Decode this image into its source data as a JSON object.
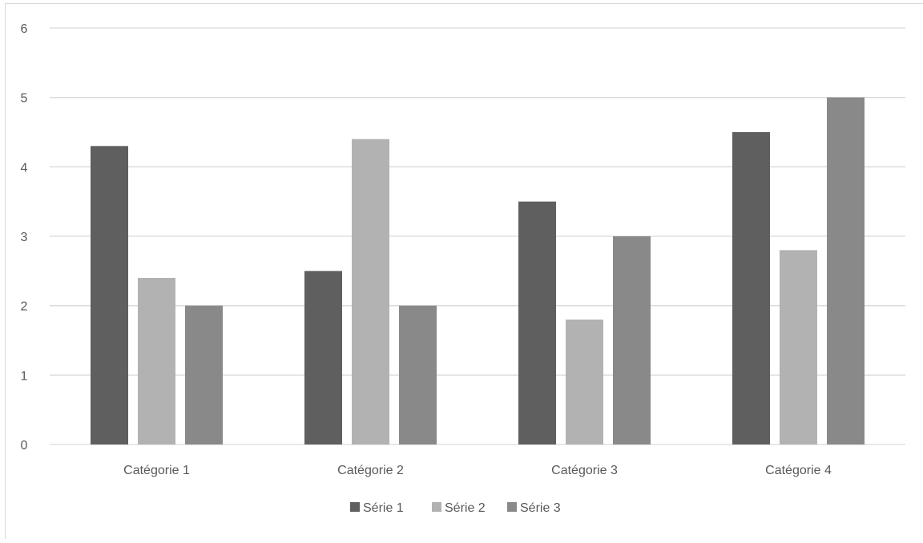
{
  "chart_data": {
    "type": "bar",
    "categories": [
      "Catégorie 1",
      "Catégorie 2",
      "Catégorie 3",
      "Catégorie 4"
    ],
    "series": [
      {
        "name": "Série 1",
        "values": [
          4.3,
          2.5,
          3.5,
          4.5
        ],
        "color": "#5f5f5f"
      },
      {
        "name": "Série 2",
        "values": [
          2.4,
          4.4,
          1.8,
          2.8
        ],
        "color": "#b2b2b2"
      },
      {
        "name": "Série 3",
        "values": [
          2.0,
          2.0,
          3.0,
          5.0
        ],
        "color": "#898989"
      }
    ],
    "yticks": [
      "0",
      "1",
      "2",
      "3",
      "4",
      "5",
      "6"
    ],
    "ylim": [
      0,
      6
    ],
    "grid": true,
    "legend_position": "bottom",
    "gridline_color": "#d9d9d9"
  }
}
